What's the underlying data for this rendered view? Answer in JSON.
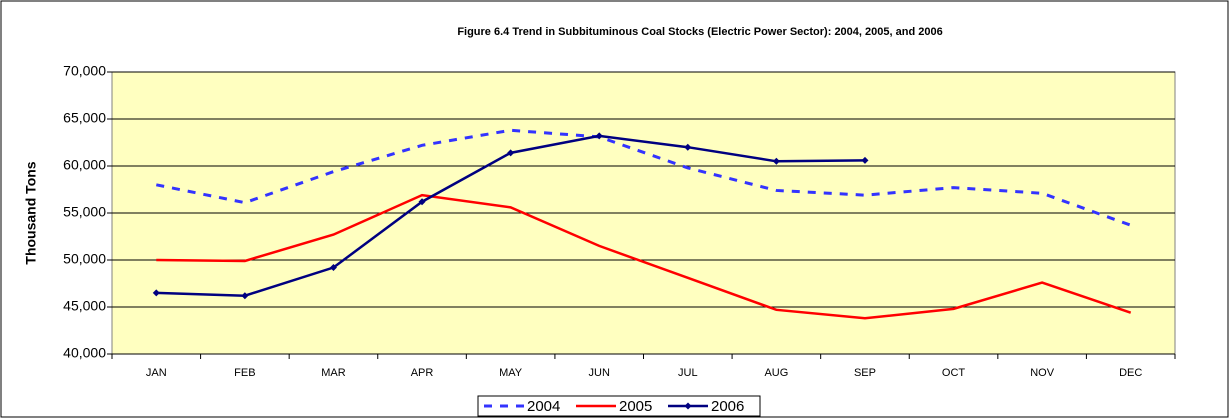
{
  "chart_data": {
    "type": "line",
    "title": "Figure 6.4  Trend in Subbituminous Coal Stocks (Electric Power Sector):  2004, 2005, and 2006",
    "y_label": "Thousand Tons",
    "categories": [
      "JAN",
      "FEB",
      "MAR",
      "APR",
      "MAY",
      "JUN",
      "JUL",
      "AUG",
      "SEP",
      "OCT",
      "NOV",
      "DEC"
    ],
    "series": [
      {
        "name": "2004",
        "color": "#3333ff",
        "dashed": true,
        "markers": false,
        "values": [
          58000,
          56100,
          59400,
          62200,
          63800,
          63100,
          59800,
          57400,
          56900,
          57700,
          57100,
          53700
        ]
      },
      {
        "name": "2005",
        "color": "#ff0000",
        "dashed": false,
        "markers": false,
        "values": [
          50000,
          49900,
          52700,
          56900,
          55600,
          51500,
          48100,
          44700,
          43800,
          44800,
          47600,
          44400
        ]
      },
      {
        "name": "2006",
        "color": "#000080",
        "dashed": false,
        "markers": true,
        "values": [
          46500,
          46200,
          49200,
          56200,
          61400,
          63200,
          62000,
          60500,
          60600,
          null,
          null,
          null
        ]
      }
    ],
    "ylim": [
      40000,
      70000
    ],
    "yticks": [
      {
        "value": 40000,
        "label": "40,000"
      },
      {
        "value": 45000,
        "label": "45,000"
      },
      {
        "value": 50000,
        "label": "50,000"
      },
      {
        "value": 55000,
        "label": "55,000"
      },
      {
        "value": 60000,
        "label": "60,000"
      },
      {
        "value": 65000,
        "label": "65,000"
      },
      {
        "value": 70000,
        "label": "70,000"
      }
    ],
    "grid": true,
    "plot_background": "#ffffc0",
    "legend": "bottom"
  }
}
